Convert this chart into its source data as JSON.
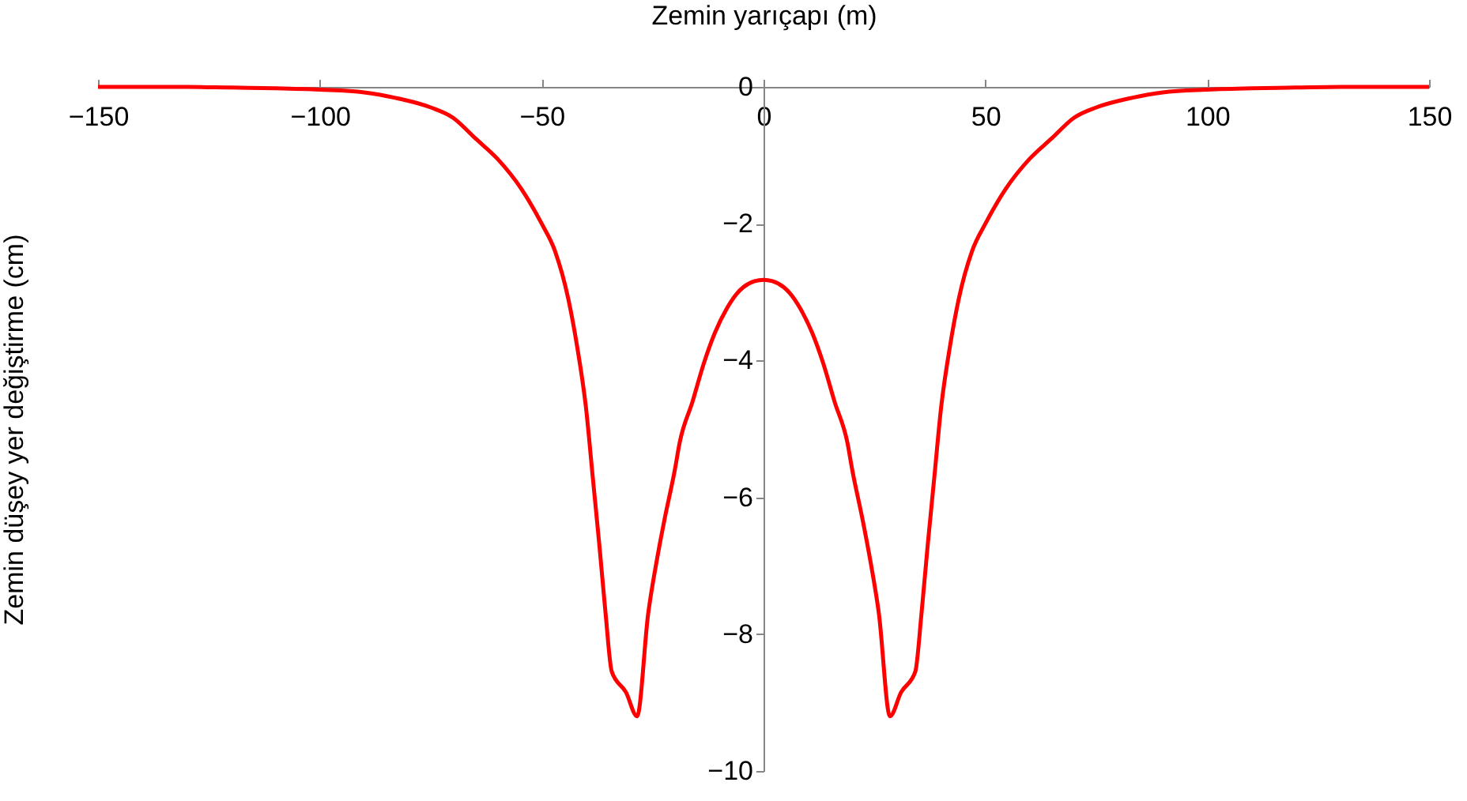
{
  "chart_data": {
    "type": "line",
    "xlabel": "Zemin yarıçapı (m)",
    "ylabel": "Zemin düşey yer değiştirme (cm)",
    "xlim": [
      -150,
      150
    ],
    "xticks": [
      -150,
      -100,
      -50,
      0,
      50,
      100,
      150
    ],
    "ylim": [
      -10,
      0
    ],
    "yticks": [
      -10,
      -8,
      -6,
      -4,
      -2,
      0
    ],
    "grid": false,
    "marker": "none",
    "line_style": "solid",
    "series": [
      {
        "color": "#ff0000",
        "x": [
          -150,
          -130,
          -120,
          -110,
          -100,
          -90,
          -83,
          -75,
          -70,
          -65,
          -60,
          -54.5,
          -50,
          -47,
          -44,
          -42,
          -40,
          -38.5,
          -37,
          -35.6,
          -34.2,
          -31,
          -28.5,
          -26,
          -24,
          -22.4,
          -20,
          -18.9,
          -16,
          -13.5,
          -11,
          -8.2,
          -6,
          -4.6,
          -2,
          0,
          2,
          4.6,
          6,
          8.2,
          11,
          13.5,
          16,
          18.9,
          20,
          22.4,
          24,
          26,
          28.5,
          31,
          34.2,
          35.6,
          37,
          38.5,
          40,
          42,
          44,
          47,
          50,
          54.5,
          60,
          65,
          70,
          75,
          83,
          90,
          100,
          110,
          120,
          130,
          150
        ],
        "values": [
          0,
          0,
          -0.01,
          -0.02,
          -0.04,
          -0.08,
          -0.16,
          -0.3,
          -0.45,
          -0.75,
          -1.05,
          -1.5,
          -2,
          -2.4,
          -3.1,
          -3.8,
          -4.7,
          -5.7,
          -6.7,
          -7.7,
          -8.55,
          -8.85,
          -9.2,
          -7.7,
          -6.9,
          -6.35,
          -5.6,
          -5.2,
          -4.6,
          -4.05,
          -3.6,
          -3.23,
          -3.02,
          -2.93,
          -2.84,
          -2.82,
          -2.84,
          -2.93,
          -3.02,
          -3.23,
          -3.6,
          -4.05,
          -4.6,
          -5.2,
          -5.6,
          -6.35,
          -6.9,
          -7.7,
          -9.2,
          -8.85,
          -8.55,
          -7.7,
          -6.7,
          -5.7,
          -4.7,
          -3.8,
          -3.1,
          -2.4,
          -2,
          -1.5,
          -1.05,
          -0.75,
          -0.45,
          -0.3,
          -0.16,
          -0.08,
          -0.04,
          -0.02,
          -0.01,
          0,
          0
        ]
      }
    ]
  }
}
